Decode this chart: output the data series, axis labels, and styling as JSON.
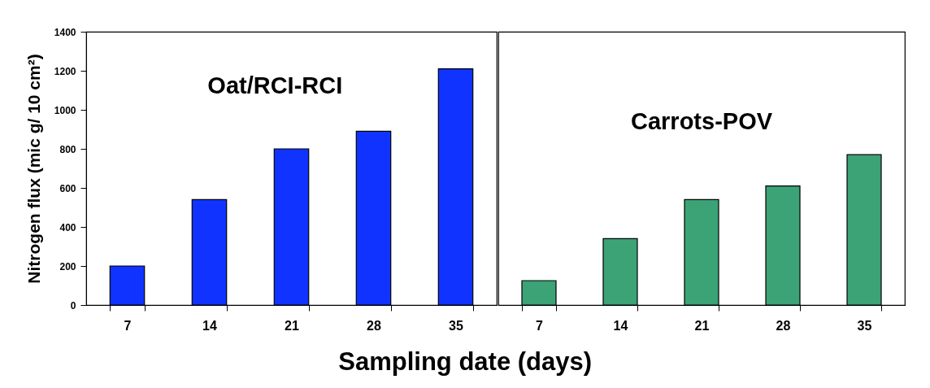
{
  "chart_data": [
    {
      "type": "bar",
      "categories": [
        "7",
        "14",
        "21",
        "28",
        "35"
      ],
      "xlabel": "Sampling date (days)",
      "ylabel": "Nitrogen flux (mic g/ 10 cm²)",
      "ylim": [
        0,
        1400
      ],
      "yticks": [
        0,
        200,
        400,
        600,
        800,
        1000,
        1200,
        1400
      ],
      "series": [
        {
          "name": "Oat/RCI-RCI",
          "color": "#1133ff",
          "values": [
            200,
            540,
            800,
            890,
            1210
          ]
        }
      ]
    },
    {
      "type": "bar",
      "categories": [
        "7",
        "14",
        "21",
        "28",
        "35"
      ],
      "ylim": [
        0,
        1400
      ],
      "yticks": [
        0,
        200,
        400,
        600,
        800,
        1000,
        1200,
        1400
      ],
      "tick_labels": "x",
      "series": [
        {
          "name": "Carrots-POV",
          "color": "#3ba376",
          "values": [
            125,
            340,
            540,
            610,
            770
          ]
        }
      ]
    }
  ]
}
